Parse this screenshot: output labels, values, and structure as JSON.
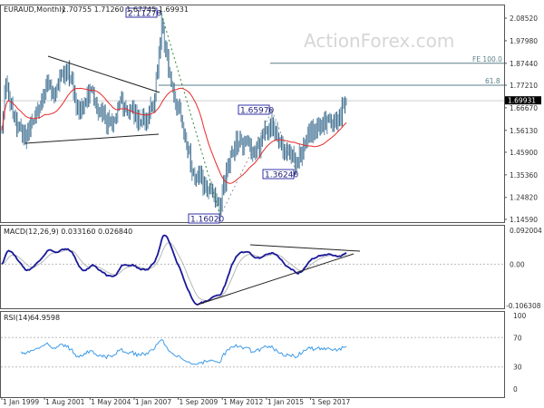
{
  "header": {
    "symbol": "EURAUD,Monthly",
    "ohlc": "1.70755 1.71260 1.67745 1.69931"
  },
  "watermark": "ActionForex.com",
  "current_price_label": "1.69931",
  "colors": {
    "bars": "#46718f",
    "ma": "#e8292a",
    "macd": "#1a1a9a",
    "signal": "#b8b8b8",
    "rsi": "#3d9be9",
    "trend": "#222222",
    "fib_green": "#2e8b2e"
  },
  "chart_data": [
    {
      "type": "ohlc",
      "title": "EURAUD,Monthly",
      "ylim": [
        1.1459,
        2.0852
      ],
      "yticks": [
        "2.08520",
        "1.97980",
        "1.87440",
        "1.77210",
        "1.66670",
        "1.56130",
        "1.45900",
        "1.35360",
        "1.24820",
        "1.14590"
      ],
      "xticks": [
        "1 Jan 1999",
        "1 Aug 2001",
        "1 May 2004",
        "1 Jan 2007",
        "1 Sep 2009",
        "1 May 2012",
        "1 Jan 2015",
        "1 Sep 2017"
      ],
      "close_keypoints": [
        [
          "1999-01",
          1.56
        ],
        [
          "1999-04",
          1.78
        ],
        [
          "1999-09",
          1.64
        ],
        [
          "2000-01",
          1.58
        ],
        [
          "2000-06",
          1.51
        ],
        [
          "2000-10",
          1.6
        ],
        [
          "2001-05",
          1.68
        ],
        [
          "2001-10",
          1.8
        ],
        [
          "2002-02",
          1.725
        ],
        [
          "2002-09",
          1.83
        ],
        [
          "2003-04",
          1.81
        ],
        [
          "2003-07",
          1.66
        ],
        [
          "2004-01",
          1.7
        ],
        [
          "2004-06",
          1.75
        ],
        [
          "2005-02",
          1.62
        ],
        [
          "2005-09",
          1.58
        ],
        [
          "2006-03",
          1.7
        ],
        [
          "2006-10",
          1.66
        ],
        [
          "2007-05",
          1.6
        ],
        [
          "2007-10",
          1.62
        ],
        [
          "2008-03",
          1.68
        ],
        [
          "2008-06",
          1.83
        ],
        [
          "2008-09",
          2.05
        ],
        [
          "2008-11",
          1.96
        ],
        [
          "2009-02",
          1.83
        ],
        [
          "2009-06",
          1.72
        ],
        [
          "2009-11",
          1.62
        ],
        [
          "2010-08",
          1.365
        ],
        [
          "2011-07",
          1.29
        ],
        [
          "2012-02",
          1.22
        ],
        [
          "2012-03",
          1.2
        ],
        [
          "2012-12",
          1.46
        ],
        [
          "2013-06",
          1.52
        ],
        [
          "2014-04",
          1.45
        ],
        [
          "2015-03",
          1.58
        ],
        [
          "2015-05",
          1.6
        ],
        [
          "2015-11",
          1.5
        ],
        [
          "2016-06",
          1.45
        ],
        [
          "2016-11",
          1.4
        ],
        [
          "2017-04",
          1.5
        ],
        [
          "2018-02",
          1.58
        ],
        [
          "2018-11",
          1.61
        ],
        [
          "2019-05",
          1.61
        ],
        [
          "2019-11",
          1.69931
        ]
      ],
      "annotations": {
        "high_2008": "2.11270",
        "low_2012": "1.16020",
        "high_2015": "1.65970",
        "low_2016": "1.36240",
        "fib_618": "61.8",
        "fib_618_level": 1.7721,
        "fe_100": "FE 100.0",
        "fe_100_level": 1.8744
      }
    },
    {
      "type": "line",
      "title": "MACD(12,26,9) 0.033160 0.026840",
      "label": "MACD(12,26,9)",
      "values_text": "0.033160 0.026840",
      "ylim": [
        -0.106308,
        0.092004
      ],
      "yticks": [
        "0.092004",
        "0.00",
        "-0.106308"
      ]
    },
    {
      "type": "line",
      "label": "RSI(14)",
      "values_text": "64.9598",
      "ylim": [
        0,
        100
      ],
      "yticks": [
        "100",
        "70",
        "30",
        "0"
      ],
      "levels": [
        70,
        30
      ]
    }
  ]
}
